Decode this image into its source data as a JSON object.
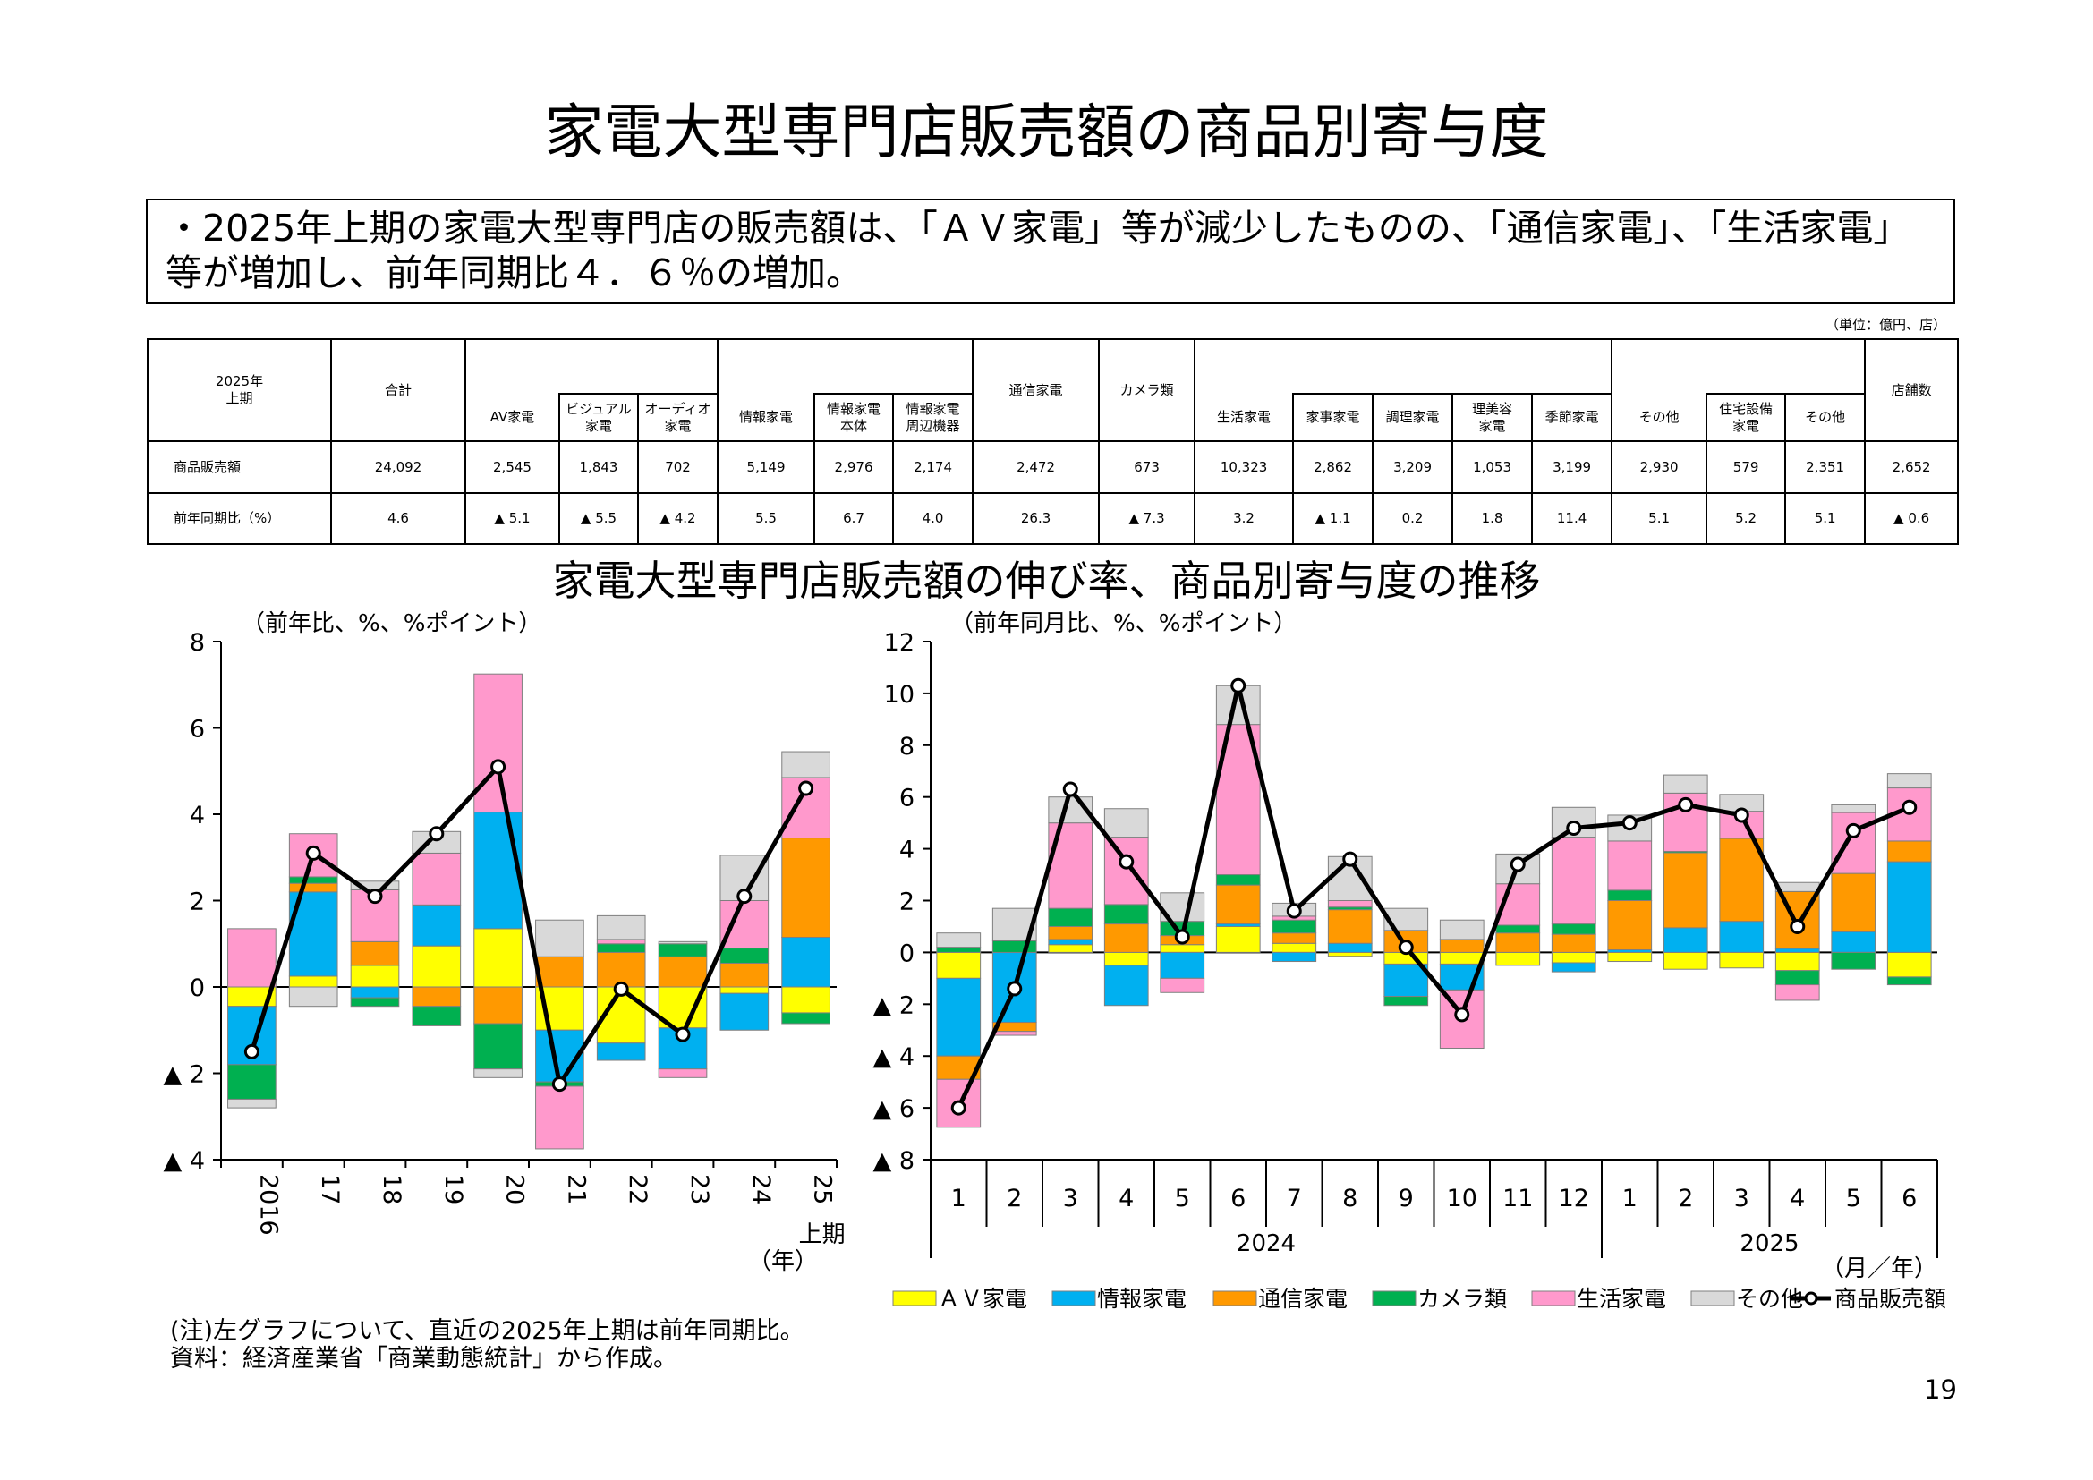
{
  "page": {
    "title": "家電大型専門店販売額の商品別寄与度",
    "summary": "・2025年上期の家電大型専門店の販売額は、「ＡＶ家電」等が減少したものの、「通信家電」、「生活家電」等が増加し、前年同期比４．６％の増加。",
    "unit": "（単位：億円、店）",
    "subtitle": "家電大型専門店販売額の伸び率、商品別寄与度の推移",
    "note_line1": "(注)左グラフについて、直近の2025年上期は前年同期比。",
    "note_line2": "資料：経済産業省「商業動態統計」から作成。",
    "page_number": "19"
  },
  "table": {
    "period": "2025年\n上期",
    "headers": {
      "total": "合計",
      "av": "AV家電",
      "visual": "ビジュアル\n家電",
      "audio": "オーディオ\n家電",
      "info": "情報家電",
      "info_body": "情報家電\n本体",
      "info_peri": "情報家電\n周辺機器",
      "comm": "通信家電",
      "camera": "カメラ類",
      "life": "生活家電",
      "household": "家事家電",
      "cooking": "調理家電",
      "beauty": "理美容\n家電",
      "seasonal": "季節家電",
      "other": "その他",
      "housing": "住宅設備\n家電",
      "other2": "その他",
      "stores": "店舗数"
    },
    "row_labels": [
      "商品販売額",
      "前年同期比（%）"
    ],
    "sales": [
      "24,092",
      "2,545",
      "1,843",
      "702",
      "5,149",
      "2,976",
      "2,174",
      "2,472",
      "673",
      "10,323",
      "2,862",
      "3,209",
      "1,053",
      "3,199",
      "2,930",
      "579",
      "2,351",
      "2,652"
    ],
    "yoy": [
      "4.6",
      "▲ 5.1",
      "▲ 5.5",
      "▲ 4.2",
      "5.5",
      "6.7",
      "4.0",
      "26.3",
      "▲ 7.3",
      "3.2",
      "▲ 1.1",
      "0.2",
      "1.8",
      "11.4",
      "5.1",
      "5.2",
      "5.1",
      "▲ 0.6"
    ]
  },
  "legend": [
    "ＡＶ家電",
    "情報家電",
    "通信家電",
    "カメラ類",
    "生活家電",
    "その他",
    "商品販売額"
  ],
  "colors": {
    "av": "#FFFF00",
    "info": "#00B0F0",
    "comm": "#FF9900",
    "camera": "#00B050",
    "life": "#FF99CC",
    "other": "#D9D9D9",
    "line": "#000000"
  },
  "chart_data": [
    {
      "type": "bar",
      "stacked": true,
      "title": "家電大型専門店販売額の伸び率、商品別寄与度の推移（年次）",
      "ylabel": "（前年比、%、%ポイント）",
      "xlabel": "（年）",
      "ylim": [
        -4,
        8
      ],
      "yticks": [
        8,
        6,
        4,
        2,
        0,
        -2,
        -4
      ],
      "ytick_labels": [
        "8",
        "6",
        "4",
        "2",
        "0",
        "▲ 2",
        "▲ 4"
      ],
      "categories": [
        "2016",
        "17",
        "18",
        "19",
        "20",
        "21",
        "22",
        "23",
        "24",
        "25"
      ],
      "category_sub": [
        "",
        "",
        "",
        "",
        "",
        "",
        "",
        "",
        "",
        "上期"
      ],
      "series": [
        {
          "name": "ＡＶ家電",
          "key": "av",
          "values": [
            -0.45,
            0.25,
            0.5,
            0.95,
            1.35,
            -1.0,
            -1.3,
            -0.95,
            -0.15,
            -0.6
          ]
        },
        {
          "name": "情報家電",
          "key": "info",
          "values": [
            -1.35,
            1.95,
            -0.25,
            0.95,
            2.7,
            -1.2,
            -0.4,
            -0.95,
            -0.85,
            1.15
          ]
        },
        {
          "name": "通信家電",
          "key": "comm",
          "values": [
            0.0,
            0.2,
            0.55,
            -0.45,
            -0.85,
            0.7,
            0.8,
            0.7,
            0.55,
            2.3
          ]
        },
        {
          "name": "カメラ類",
          "key": "camera",
          "values": [
            -0.8,
            0.15,
            -0.2,
            -0.45,
            -1.05,
            -0.1,
            0.2,
            0.3,
            0.35,
            -0.25
          ]
        },
        {
          "name": "生活家電",
          "key": "life",
          "values": [
            1.35,
            1.0,
            1.2,
            1.2,
            3.2,
            -1.45,
            0.1,
            -0.2,
            1.1,
            1.4
          ]
        },
        {
          "name": "その他",
          "key": "other",
          "values": [
            -0.2,
            -0.45,
            0.2,
            0.5,
            -0.2,
            0.85,
            0.55,
            0.05,
            1.05,
            0.6
          ]
        }
      ],
      "line": {
        "name": "商品販売額",
        "values": [
          -1.5,
          3.1,
          2.1,
          3.55,
          5.1,
          -2.25,
          -0.05,
          -1.1,
          2.1,
          4.6
        ]
      }
    },
    {
      "type": "bar",
      "stacked": true,
      "title": "家電大型専門店販売額の伸び率、商品別寄与度の推移（月次）",
      "ylabel": "（前年同月比、%、%ポイント）",
      "xlabel": "（月／年）",
      "ylim": [
        -8,
        12
      ],
      "yticks": [
        12,
        10,
        8,
        6,
        4,
        2,
        0,
        -2,
        -4,
        -6,
        -8
      ],
      "ytick_labels": [
        "12",
        "10",
        "8",
        "6",
        "4",
        "2",
        "0",
        "▲ 2",
        "▲ 4",
        "▲ 6",
        "▲ 8"
      ],
      "categories": [
        "1",
        "2",
        "3",
        "4",
        "5",
        "6",
        "7",
        "8",
        "9",
        "10",
        "11",
        "12",
        "1",
        "2",
        "3",
        "4",
        "5",
        "6"
      ],
      "years": [
        {
          "label": "2024",
          "from": 0,
          "to": 11
        },
        {
          "label": "2025",
          "from": 12,
          "to": 17
        }
      ],
      "series": [
        {
          "name": "ＡＶ家電",
          "key": "av",
          "values": [
            -1.0,
            0.0,
            0.3,
            -0.5,
            0.3,
            1.0,
            0.35,
            -0.15,
            -0.45,
            -0.45,
            -0.5,
            -0.4,
            -0.35,
            -0.65,
            -0.6,
            -0.7,
            0.0,
            -0.95
          ]
        },
        {
          "name": "情報家電",
          "key": "info",
          "values": [
            -3.0,
            -2.7,
            0.2,
            -1.55,
            -1.0,
            0.1,
            -0.35,
            0.35,
            -1.25,
            -1.0,
            0.0,
            -0.35,
            0.1,
            0.95,
            1.2,
            0.15,
            0.8,
            3.5
          ]
        },
        {
          "name": "通信家電",
          "key": "comm",
          "values": [
            -0.9,
            -0.35,
            0.5,
            1.1,
            0.35,
            1.5,
            0.4,
            1.3,
            0.85,
            0.5,
            0.75,
            0.7,
            1.9,
            2.9,
            3.2,
            2.2,
            2.25,
            0.8
          ]
        },
        {
          "name": "カメラ類",
          "key": "camera",
          "values": [
            0.2,
            0.45,
            0.7,
            0.75,
            0.55,
            0.4,
            0.5,
            0.1,
            -0.35,
            0.0,
            0.3,
            0.4,
            0.4,
            0.05,
            0.0,
            -0.55,
            -0.65,
            -0.3
          ]
        },
        {
          "name": "生活家電",
          "key": "life",
          "values": [
            -1.85,
            -0.15,
            3.3,
            2.6,
            -0.55,
            5.8,
            0.15,
            0.25,
            0.0,
            -2.25,
            1.6,
            3.35,
            1.9,
            2.25,
            1.05,
            -0.6,
            2.35,
            2.05
          ]
        },
        {
          "name": "その他",
          "key": "other",
          "values": [
            0.55,
            1.25,
            1.0,
            1.1,
            1.1,
            1.5,
            0.5,
            1.7,
            0.85,
            0.75,
            1.15,
            1.15,
            1.0,
            0.7,
            0.65,
            0.35,
            0.3,
            0.55
          ]
        }
      ],
      "line": {
        "name": "商品販売額",
        "values": [
          -6.0,
          -1.4,
          6.3,
          3.5,
          0.6,
          10.3,
          1.6,
          3.6,
          0.2,
          -2.4,
          3.4,
          4.8,
          5.0,
          5.7,
          5.3,
          1.0,
          4.7,
          5.6
        ]
      }
    }
  ]
}
